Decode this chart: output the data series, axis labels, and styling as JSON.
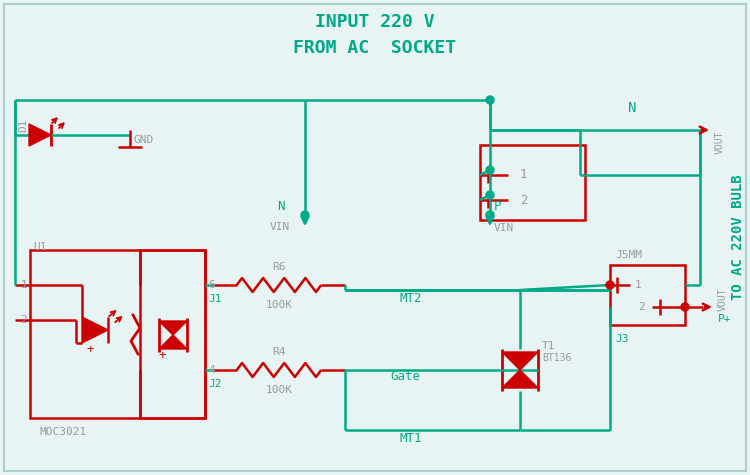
{
  "bg_color": "#e8f4f4",
  "red": "#cc0000",
  "green": "#00aa88",
  "gray": "#999999",
  "title1": "INPUT 220 V",
  "title2": "FROM AC  SOCKET",
  "right_label": "TO AC 220V BULB",
  "border_color": "#aacccc",
  "figsize": [
    7.5,
    4.75
  ],
  "dpi": 100
}
